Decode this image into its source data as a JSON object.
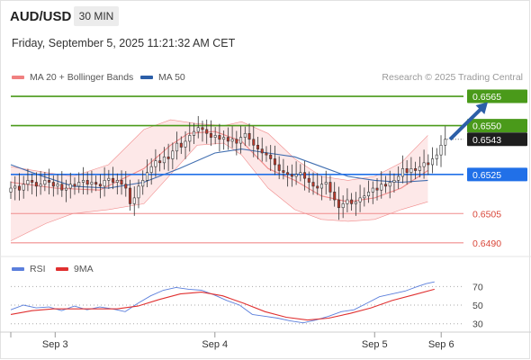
{
  "header": {
    "symbol": "AUD/USD",
    "timeframe": "30 MIN",
    "datetime": "Friday, September 5, 2025 11:21:32 AM CET"
  },
  "legend": {
    "ma20_label": "MA 20 + Bollinger Bands",
    "ma50_label": "MA 50",
    "credit": "Research © 2025 Trading Central"
  },
  "colors": {
    "up_candle": "#ffffff",
    "down_candle": "#c0392b",
    "ma20": "#f08080",
    "ma50": "#2c5fa8",
    "bollinger_fill": "#fde4e4",
    "resistance": "#4a9a1a",
    "pivot": "#2170e8",
    "support": "#f08c8c",
    "rsi": "#5b7fdc",
    "rsi_ma": "#e03030",
    "arrow": "#2c5fa8"
  },
  "chart_data": [
    {
      "type": "candlestick",
      "title": "AUD/USD",
      "ylim": [
        0.6483,
        0.6571
      ],
      "xlim": [
        0,
        100
      ],
      "xticks": [
        {
          "x": 10,
          "label": "Sep 3"
        },
        {
          "x": 46,
          "label": "Sep 4"
        },
        {
          "x": 82,
          "label": "Sep 5"
        },
        {
          "x": 97,
          "label": "Sep 6"
        }
      ],
      "levels": [
        {
          "value": 0.6565,
          "label": "0.6565",
          "kind": "resistance"
        },
        {
          "value": 0.655,
          "label": "0.6550",
          "kind": "resistance"
        },
        {
          "value": 0.6525,
          "label": "0.6525",
          "kind": "pivot"
        },
        {
          "value": 0.6505,
          "label": "0.6505",
          "kind": "support"
        },
        {
          "value": 0.649,
          "label": "0.6490",
          "kind": "support"
        }
      ],
      "last_price": {
        "value": 0.6543,
        "label": "0.6543"
      },
      "forecast_arrow": {
        "from": [
          99,
          0.6543
        ],
        "to": [
          107.5,
          0.6562
        ]
      },
      "ma20": [
        [
          0,
          0.6521
        ],
        [
          10,
          0.6518
        ],
        [
          20,
          0.6517
        ],
        [
          30,
          0.6528
        ],
        [
          36,
          0.654
        ],
        [
          40,
          0.6546
        ],
        [
          46,
          0.6547
        ],
        [
          52,
          0.6542
        ],
        [
          58,
          0.6528
        ],
        [
          64,
          0.6522
        ],
        [
          70,
          0.6514
        ],
        [
          76,
          0.6511
        ],
        [
          82,
          0.6513
        ],
        [
          88,
          0.6518
        ],
        [
          94,
          0.6527
        ]
      ],
      "ma50": [
        [
          0,
          0.653
        ],
        [
          6,
          0.6525
        ],
        [
          14,
          0.6519
        ],
        [
          22,
          0.6518
        ],
        [
          30,
          0.6521
        ],
        [
          38,
          0.6528
        ],
        [
          46,
          0.6536
        ],
        [
          52,
          0.6538
        ],
        [
          58,
          0.6536
        ],
        [
          64,
          0.6534
        ],
        [
          70,
          0.6529
        ],
        [
          76,
          0.6524
        ],
        [
          82,
          0.6522
        ],
        [
          88,
          0.6521
        ],
        [
          94,
          0.6522
        ]
      ],
      "bollinger_upper": [
        [
          0,
          0.6529
        ],
        [
          8,
          0.6526
        ],
        [
          14,
          0.6524
        ],
        [
          22,
          0.653
        ],
        [
          30,
          0.6548
        ],
        [
          36,
          0.6553
        ],
        [
          42,
          0.6551
        ],
        [
          48,
          0.655
        ],
        [
          52,
          0.6552
        ],
        [
          58,
          0.6546
        ],
        [
          64,
          0.6533
        ],
        [
          70,
          0.6524
        ],
        [
          76,
          0.6522
        ],
        [
          82,
          0.6524
        ],
        [
          88,
          0.6531
        ],
        [
          94,
          0.6545
        ]
      ],
      "bollinger_lower": [
        [
          0,
          0.6491
        ],
        [
          8,
          0.65
        ],
        [
          14,
          0.6505
        ],
        [
          22,
          0.6507
        ],
        [
          30,
          0.651
        ],
        [
          36,
          0.6525
        ],
        [
          42,
          0.654
        ],
        [
          48,
          0.6541
        ],
        [
          52,
          0.6535
        ],
        [
          58,
          0.6518
        ],
        [
          64,
          0.6507
        ],
        [
          70,
          0.6502
        ],
        [
          76,
          0.6501
        ],
        [
          82,
          0.6502
        ],
        [
          88,
          0.6507
        ],
        [
          94,
          0.6511
        ]
      ],
      "candles": {
        "x_start": 0,
        "x_step": 0.96,
        "close": [
          0.6518,
          0.6519,
          0.6517,
          0.652,
          0.6522,
          0.6521,
          0.6519,
          0.652,
          0.6522,
          0.6521,
          0.6519,
          0.652,
          0.6517,
          0.6518,
          0.652,
          0.6519,
          0.6521,
          0.6522,
          0.652,
          0.6521,
          0.652,
          0.6519,
          0.6522,
          0.6523,
          0.6521,
          0.6522,
          0.652,
          0.6518,
          0.651,
          0.6513,
          0.6519,
          0.6522,
          0.6526,
          0.6529,
          0.6532,
          0.6531,
          0.6534,
          0.6533,
          0.6537,
          0.6541,
          0.6539,
          0.6542,
          0.6545,
          0.6547,
          0.6549,
          0.6548,
          0.6546,
          0.6544,
          0.6545,
          0.6543,
          0.6544,
          0.6542,
          0.6543,
          0.6541,
          0.6544,
          0.6546,
          0.6543,
          0.654,
          0.6538,
          0.6536,
          0.6535,
          0.6533,
          0.653,
          0.6527,
          0.6526,
          0.6525,
          0.6524,
          0.6525,
          0.6526,
          0.6523,
          0.6521,
          0.6519,
          0.6518,
          0.652,
          0.6521,
          0.6516,
          0.6512,
          0.6508,
          0.651,
          0.6512,
          0.651,
          0.6511,
          0.6513,
          0.6514,
          0.6516,
          0.6518,
          0.6517,
          0.652,
          0.6519,
          0.6521,
          0.6522,
          0.6524,
          0.6528,
          0.6526,
          0.6528,
          0.6527,
          0.6529,
          0.6531,
          0.653,
          0.6533,
          0.6535,
          0.654,
          0.6543
        ]
      }
    },
    {
      "type": "line",
      "title": "RSI",
      "ylim": [
        22,
        80
      ],
      "yticks": [
        30,
        50,
        70
      ],
      "series": [
        {
          "name": "RSI",
          "values": [
            [
              0,
              45
            ],
            [
              3,
              50
            ],
            [
              6,
              47
            ],
            [
              9,
              48
            ],
            [
              12,
              44
            ],
            [
              15,
              49
            ],
            [
              18,
              45
            ],
            [
              21,
              48
            ],
            [
              24,
              46
            ],
            [
              27,
              43
            ],
            [
              30,
              52
            ],
            [
              33,
              60
            ],
            [
              36,
              66
            ],
            [
              39,
              69
            ],
            [
              42,
              67
            ],
            [
              45,
              66
            ],
            [
              48,
              61
            ],
            [
              51,
              55
            ],
            [
              54,
              50
            ],
            [
              57,
              40
            ],
            [
              60,
              38
            ],
            [
              63,
              36
            ],
            [
              66,
              33
            ],
            [
              69,
              31
            ],
            [
              72,
              34
            ],
            [
              75,
              38
            ],
            [
              78,
              43
            ],
            [
              81,
              45
            ],
            [
              84,
              52
            ],
            [
              87,
              59
            ],
            [
              90,
              62
            ],
            [
              93,
              65
            ],
            [
              96,
              70
            ],
            [
              98,
              73
            ],
            [
              100,
              75
            ]
          ]
        },
        {
          "name": "9MA",
          "values": [
            [
              0,
              40
            ],
            [
              5,
              44
            ],
            [
              10,
              46
            ],
            [
              15,
              46
            ],
            [
              20,
              46
            ],
            [
              25,
              46
            ],
            [
              30,
              49
            ],
            [
              35,
              56
            ],
            [
              40,
              62
            ],
            [
              45,
              64
            ],
            [
              50,
              60
            ],
            [
              55,
              52
            ],
            [
              60,
              43
            ],
            [
              65,
              37
            ],
            [
              70,
              34
            ],
            [
              75,
              36
            ],
            [
              80,
              41
            ],
            [
              85,
              47
            ],
            [
              90,
              55
            ],
            [
              95,
              61
            ],
            [
              100,
              67
            ]
          ]
        }
      ]
    }
  ]
}
